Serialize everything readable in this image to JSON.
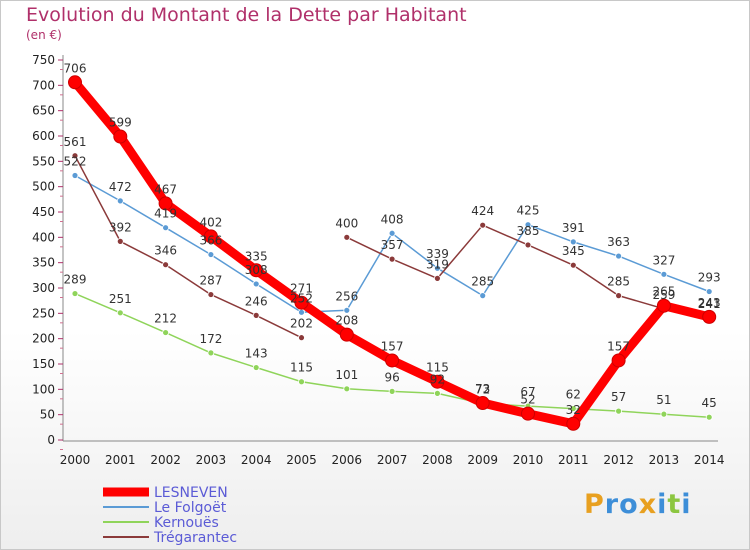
{
  "title": "Evolution du Montant de la Dette par Habitant",
  "subtitle": "(en €)",
  "logo": {
    "text": "Proxiti",
    "colors": [
      "#e8a020",
      "#3d8ed8",
      "#3d8ed8",
      "#e8a020",
      "#3d8ed8",
      "#8cc640",
      "#3d8ed8"
    ]
  },
  "chart_data": {
    "type": "line",
    "title": "Evolution du Montant de la Dette par Habitant",
    "subtitle": "(en €)",
    "xlabel": "",
    "ylabel": "",
    "ylim": [
      0,
      750
    ],
    "yticks": [
      0,
      50,
      100,
      150,
      200,
      250,
      300,
      350,
      400,
      450,
      500,
      550,
      600,
      650,
      700,
      750
    ],
    "x": [
      "2000",
      "2001",
      "2002",
      "2003",
      "2004",
      "2005",
      "2006",
      "2007",
      "2008",
      "2009",
      "2010",
      "2011",
      "2012",
      "2013",
      "2014"
    ],
    "grid": false,
    "legend_position": "bottom-left",
    "series": [
      {
        "name": "LESNEVEN",
        "color": "#ff0000",
        "values": [
          706,
          599,
          467,
          402,
          335,
          271,
          208,
          157,
          115,
          73,
          52,
          32,
          157,
          265,
          243
        ]
      },
      {
        "name": "Le Folgoët",
        "color": "#5b9bd5",
        "values": [
          522,
          472,
          419,
          366,
          308,
          252,
          256,
          408,
          339,
          285,
          425,
          391,
          363,
          327,
          293
        ]
      },
      {
        "name": "Kernouës",
        "color": "#8fd45a",
        "values": [
          289,
          251,
          212,
          172,
          143,
          115,
          101,
          96,
          92,
          72,
          67,
          62,
          57,
          51,
          45
        ]
      },
      {
        "name": "Trégarantec",
        "color": "#8b3a3a",
        "values": [
          561,
          392,
          346,
          287,
          246,
          202,
          400,
          357,
          319,
          424,
          385,
          345,
          285,
          259,
          241
        ]
      }
    ]
  }
}
